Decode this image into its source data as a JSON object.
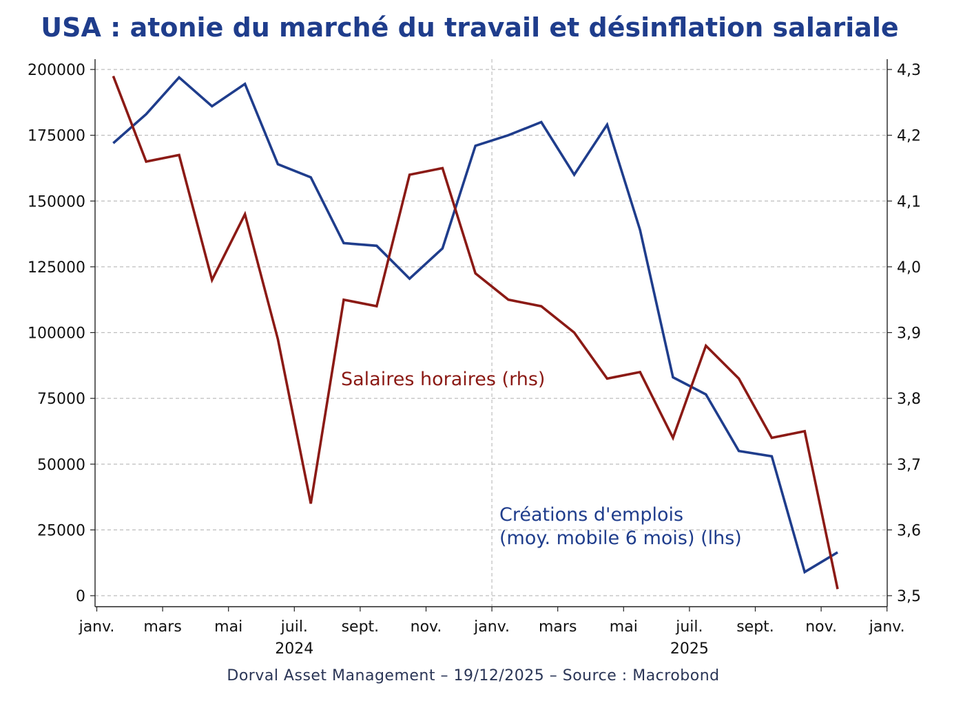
{
  "title": "USA : atonie du marché du travail et désinflation salariale",
  "footer": "Dorval Asset Management – 19/12/2025 –   Source : Macrobond",
  "colors": {
    "title": "#1f3d8c",
    "jobs": "#1f3d8c",
    "wages": "#8b1a15",
    "grid": "#bdbdbd"
  },
  "annotations": {
    "wages": "Salaires horaires (rhs)",
    "jobs_line1": "Créations d'emplois",
    "jobs_line2": "(moy. mobile 6 mois) (lhs)"
  },
  "chart_data": {
    "type": "line",
    "x_months": [
      "2024-01",
      "2024-02",
      "2024-03",
      "2024-04",
      "2024-05",
      "2024-06",
      "2024-07",
      "2024-08",
      "2024-09",
      "2024-10",
      "2024-11",
      "2024-12",
      "2025-01",
      "2025-02",
      "2025-03",
      "2025-04",
      "2025-05",
      "2025-06",
      "2025-07",
      "2025-08",
      "2025-09",
      "2025-10",
      "2025-11"
    ],
    "x_tick_labels": [
      "janv.",
      "mars",
      "mai",
      "juil.",
      "sept.",
      "nov.",
      "janv.",
      "mars",
      "mai",
      "juil.",
      "sept.",
      "nov.",
      "janv."
    ],
    "x_year_labels": [
      "2024",
      "2025"
    ],
    "y_left_ticks": [
      "0",
      "25000",
      "50000",
      "75000",
      "100000",
      "125000",
      "150000",
      "175000",
      "200000"
    ],
    "y_right_ticks": [
      "3,5",
      "3,6",
      "3,7",
      "3,8",
      "3,9",
      "4,0",
      "4,1",
      "4,2",
      "4,3"
    ],
    "ylim_left": [
      0,
      200000
    ],
    "ylim_right": [
      3.5,
      4.3
    ],
    "grid": true,
    "series": [
      {
        "name": "Créations d'emplois (moy. mobile 6 mois) (lhs)",
        "axis": "left",
        "values": [
          172000,
          183000,
          197000,
          186000,
          194500,
          164000,
          159000,
          134000,
          133000,
          120500,
          132000,
          171000,
          175000,
          180000,
          160000,
          179000,
          139000,
          83000,
          76500,
          55000,
          53000,
          9000,
          16500
        ]
      },
      {
        "name": "Salaires horaires (rhs)",
        "axis": "right",
        "values": [
          4.29,
          4.16,
          4.17,
          3.98,
          4.08,
          3.89,
          3.64,
          3.95,
          3.94,
          4.14,
          4.15,
          3.99,
          3.95,
          3.94,
          3.9,
          3.83,
          3.84,
          3.74,
          3.88,
          3.83,
          3.74,
          3.75,
          3.51
        ]
      }
    ]
  }
}
